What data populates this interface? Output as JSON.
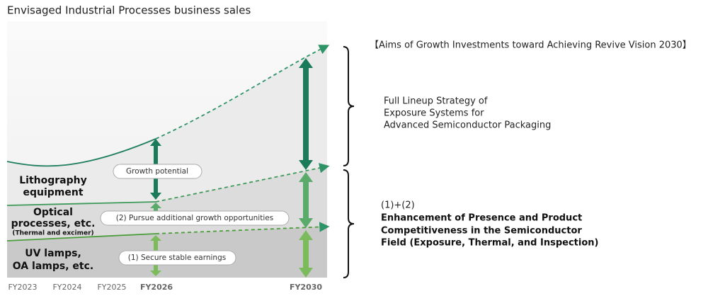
{
  "title": "Envisaged Industrial Processes business sales",
  "segments": [
    {
      "lines": [
        "Lithography",
        "equipment"
      ]
    },
    {
      "lines": [
        "Optical",
        "processes, etc."
      ],
      "note": "(Thermal and excimer)"
    },
    {
      "lines": [
        "UV lamps,",
        "OA lamps, etc."
      ]
    }
  ],
  "labels": [
    "Growth potential",
    "(2) Pursue additional growth opportunities",
    "(1) Secure stable earnings"
  ],
  "x_labels": [
    "FY2023",
    "FY2024",
    "FY2025",
    "FY2026",
    "FY2030"
  ],
  "aims": {
    "heading": "【Aims of Growth Investments toward Achieving Revive Vision 2030】",
    "upper_lines": [
      "Full Lineup Strategy of",
      "Exposure Systems for",
      "Advanced Semiconductor Packaging"
    ],
    "lower_title": "(1)+(2)",
    "lower_lines": [
      "Enhancement of Presence and Product",
      "Competitiveness in the Semiconductor",
      "Field (Exposure, Thermal, and Inspection)"
    ]
  }
}
